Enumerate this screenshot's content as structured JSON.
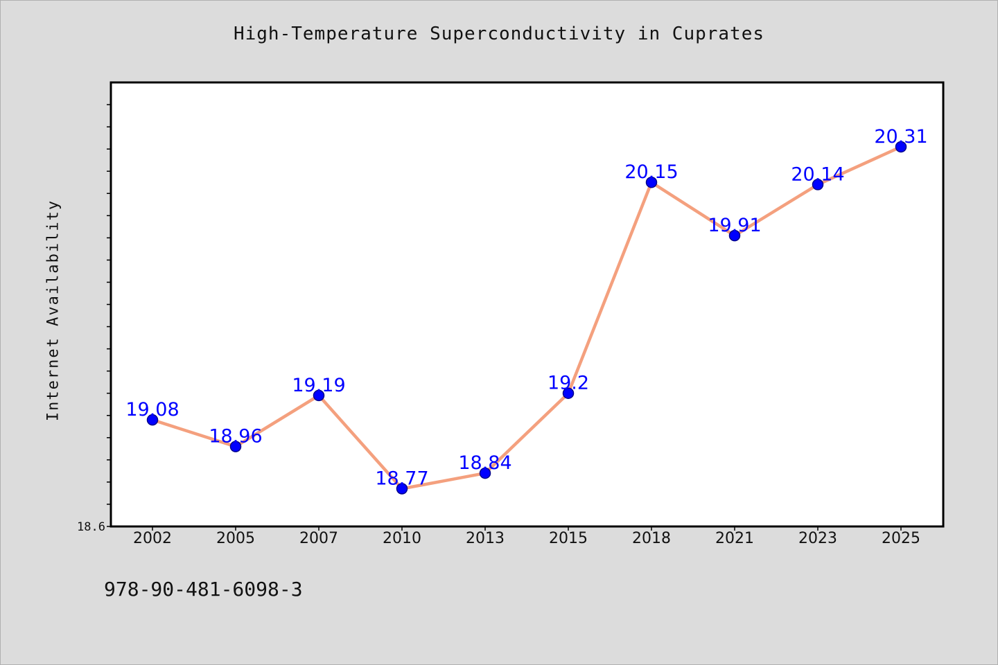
{
  "chart_data": {
    "type": "line",
    "title": "High-Temperature Superconductivity in Cuprates",
    "xlabel": "",
    "ylabel": "Internet Availability",
    "categories": [
      "2002",
      "2005",
      "2007",
      "2010",
      "2013",
      "2015",
      "2018",
      "2021",
      "2023",
      "2025"
    ],
    "series": [
      {
        "values": [
          19.08,
          18.96,
          19.19,
          18.77,
          18.84,
          19.2,
          20.15,
          19.91,
          20.14,
          20.31
        ],
        "labels": [
          "19.08",
          "18.96",
          "19.19",
          "18.77",
          "18.84",
          "19.2",
          "20.15",
          "19.91",
          "20.14",
          "20.31"
        ]
      }
    ],
    "ylim": [
      18.6,
      20.6
    ],
    "ytick_label": "18.6",
    "grid": false,
    "legend": "none",
    "colors": {
      "line": "#f4a07e",
      "marker": "#0000ff",
      "marker_edge": "#00008b",
      "data_label": "#0000ff",
      "background": "#dcdcdc",
      "plot_background": "#ffffff"
    }
  },
  "footer": {
    "code": "978-90-481-6098-3"
  }
}
